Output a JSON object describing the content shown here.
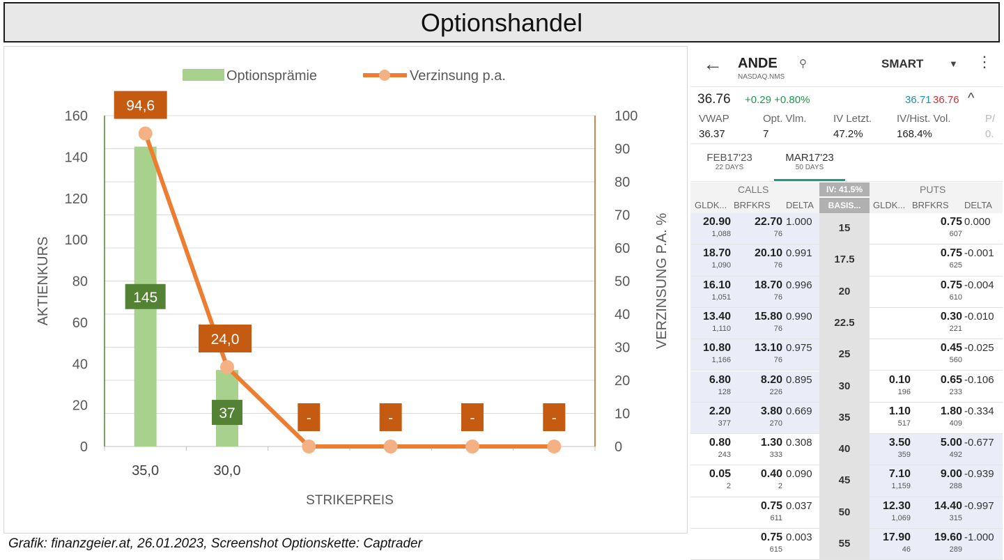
{
  "title": "Optionshandel",
  "chart_data": {
    "type": "bar",
    "categories": [
      "35,0",
      "30,0",
      "",
      "",
      "",
      ""
    ],
    "series": [
      {
        "name": "Optionsprämie",
        "type": "bar",
        "axis": "left",
        "color": "#a9d18e",
        "values": [
          145,
          37,
          null,
          null,
          null,
          null
        ],
        "labels": [
          "145",
          "37",
          "",
          "",
          "",
          ""
        ]
      },
      {
        "name": "Verzinsung p.a.",
        "type": "line",
        "axis": "right",
        "color": "#ed7d31",
        "values": [
          94.6,
          24.0,
          0,
          0,
          0,
          0
        ],
        "labels": [
          "94,6",
          "24,0",
          "-",
          "-",
          "-",
          "-"
        ]
      }
    ],
    "xlabel": "STRIKEPREIS",
    "ylabel": "AKTIENKURS",
    "y2label": "VERZINSUNG P.A. %",
    "ylim": [
      0,
      160
    ],
    "y2lim": [
      0,
      100
    ],
    "yticks": [
      0,
      20,
      40,
      60,
      80,
      100,
      120,
      140,
      160
    ],
    "y2ticks": [
      0,
      10,
      20,
      30,
      40,
      50,
      60,
      70,
      80,
      90,
      100
    ],
    "grid": true,
    "legend_position": "top"
  },
  "caption": "Grafik: finanzgeier.at, 26.01.2023, Screenshot Optionskette: Captrader",
  "chain": {
    "symbol": "ANDE",
    "exchange": "NASDAQ.NMS",
    "route": "SMART",
    "last": "36.76",
    "change": "+0.29 +0.80%",
    "bid": "36.71",
    "ask": "36.76",
    "stats": [
      {
        "label": "VWAP",
        "value": "36.37"
      },
      {
        "label": "Opt. Vlm.",
        "value": "7"
      },
      {
        "label": "IV Letzt.",
        "value": "47.2%"
      },
      {
        "label": "IV/Hist. Vol.",
        "value": "168.4%"
      },
      {
        "label": "P/",
        "value": "0."
      }
    ],
    "expirations": [
      {
        "label": "FEB17'23",
        "days": "22 DAYS"
      },
      {
        "label": "MAR17'23",
        "days": "50 DAYS"
      }
    ],
    "calls_label": "CALLS",
    "puts_label": "PUTS",
    "iv_label": "IV: 41.5%",
    "basis_label": "BASIS...",
    "columns": {
      "bid": "GLDK...",
      "ask": "BRFKRS",
      "delta": "DELTA"
    },
    "rows": [
      {
        "strike": "15",
        "cbid": "20.90",
        "cbid_sz": "1,088",
        "cask": "22.70",
        "cask_sz": "76",
        "cdelta": "1.000",
        "pbid": "",
        "pbid_sz": "",
        "pask": "0.75",
        "pask_sz": "607",
        "pdelta": "0.000"
      },
      {
        "strike": "17.5",
        "cbid": "18.70",
        "cbid_sz": "1,090",
        "cask": "20.10",
        "cask_sz": "76",
        "cdelta": "0.991",
        "pbid": "",
        "pbid_sz": "",
        "pask": "0.75",
        "pask_sz": "625",
        "pdelta": "-0.001"
      },
      {
        "strike": "20",
        "cbid": "16.10",
        "cbid_sz": "1,051",
        "cask": "18.70",
        "cask_sz": "76",
        "cdelta": "0.996",
        "pbid": "",
        "pbid_sz": "",
        "pask": "0.75",
        "pask_sz": "610",
        "pdelta": "-0.004"
      },
      {
        "strike": "22.5",
        "cbid": "13.40",
        "cbid_sz": "1,110",
        "cask": "15.80",
        "cask_sz": "76",
        "cdelta": "0.990",
        "pbid": "",
        "pbid_sz": "",
        "pask": "0.30",
        "pask_sz": "221",
        "pdelta": "-0.010"
      },
      {
        "strike": "25",
        "cbid": "10.80",
        "cbid_sz": "1,166",
        "cask": "13.10",
        "cask_sz": "76",
        "cdelta": "0.975",
        "pbid": "",
        "pbid_sz": "",
        "pask": "0.45",
        "pask_sz": "560",
        "pdelta": "-0.025"
      },
      {
        "strike": "30",
        "cbid": "6.80",
        "cbid_sz": "128",
        "cask": "8.20",
        "cask_sz": "226",
        "cdelta": "0.895",
        "pbid": "0.10",
        "pbid_sz": "196",
        "pask": "0.65",
        "pask_sz": "233",
        "pdelta": "-0.106"
      },
      {
        "strike": "35",
        "cbid": "2.20",
        "cbid_sz": "377",
        "cask": "3.80",
        "cask_sz": "270",
        "cdelta": "0.669",
        "pbid": "1.10",
        "pbid_sz": "517",
        "pask": "1.80",
        "pask_sz": "409",
        "pdelta": "-0.334"
      },
      {
        "strike": "40",
        "cbid": "0.80",
        "cbid_sz": "243",
        "cask": "1.30",
        "cask_sz": "333",
        "cdelta": "0.308",
        "pbid": "3.50",
        "pbid_sz": "359",
        "pask": "5.00",
        "pask_sz": "492",
        "pdelta": "-0.677"
      },
      {
        "strike": "45",
        "cbid": "0.05",
        "cbid_sz": "2",
        "cask": "0.40",
        "cask_sz": "2",
        "cdelta": "0.090",
        "pbid": "7.10",
        "pbid_sz": "1,159",
        "pask": "9.00",
        "pask_sz": "288",
        "pdelta": "-0.939"
      },
      {
        "strike": "50",
        "cbid": "",
        "cbid_sz": "",
        "cask": "0.75",
        "cask_sz": "611",
        "cdelta": "0.037",
        "pbid": "12.30",
        "pbid_sz": "1,069",
        "pask": "14.40",
        "pask_sz": "315",
        "pdelta": "-0.997"
      },
      {
        "strike": "55",
        "cbid": "",
        "cbid_sz": "",
        "cask": "0.75",
        "cask_sz": "615",
        "cdelta": "0.003",
        "pbid": "17.90",
        "pbid_sz": "46",
        "pask": "19.60",
        "pask_sz": "289",
        "pdelta": "-1.000"
      }
    ]
  }
}
